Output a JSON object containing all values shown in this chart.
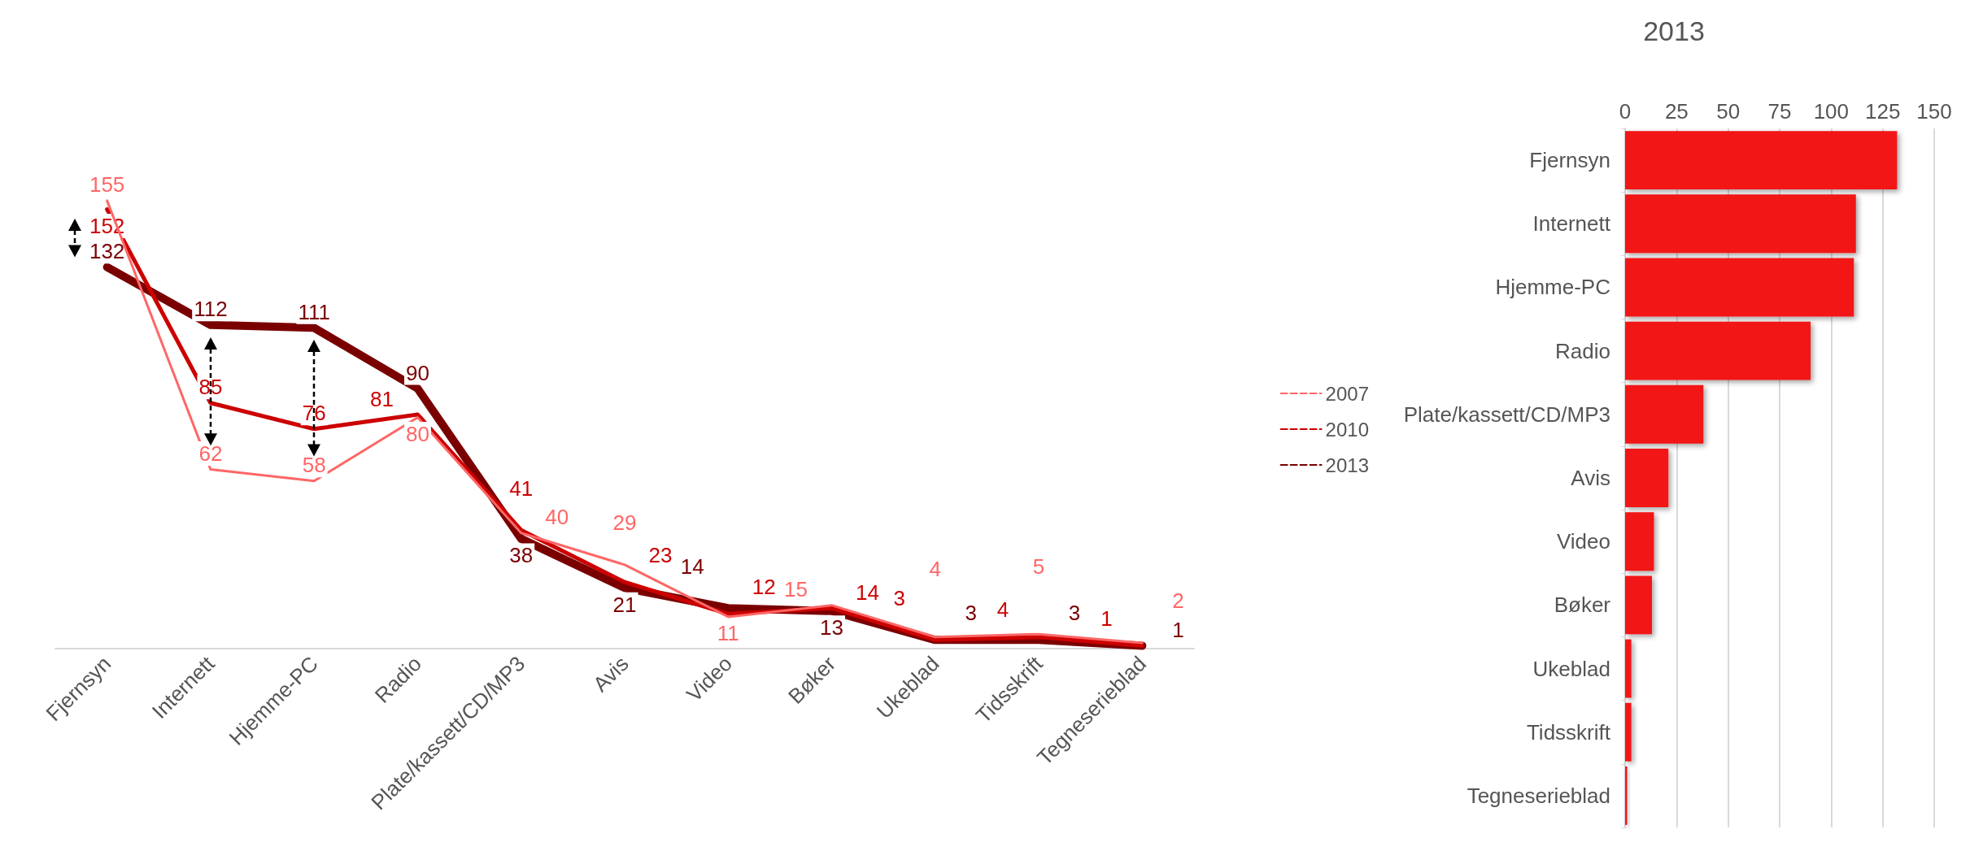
{
  "chart_data": [
    {
      "type": "line",
      "categories": [
        "Fjernsyn",
        "Internett",
        "Hjemme-PC",
        "Radio",
        "Plate/kassett/CD/MP3",
        "Avis",
        "Video",
        "Bøker",
        "Ukeblad",
        "Tidsskrift",
        "Tegneserieblad"
      ],
      "series": [
        {
          "name": "2007",
          "color": "#ff6666",
          "values": [
            155,
            62,
            58,
            80,
            40,
            29,
            11,
            15,
            4,
            5,
            2
          ]
        },
        {
          "name": "2010",
          "color": "#cc0000",
          "values": [
            152,
            85,
            76,
            81,
            41,
            23,
            12,
            14,
            3,
            4,
            1
          ]
        },
        {
          "name": "2013",
          "color": "#7a0000",
          "values": [
            132,
            112,
            111,
            90,
            38,
            21,
            14,
            13,
            3,
            3,
            1
          ]
        }
      ],
      "data_labels": true,
      "legend": "right",
      "marker": "none",
      "line_style": "solid",
      "grid": false
    },
    {
      "type": "bar",
      "title": "2013",
      "orientation": "horizontal",
      "categories": [
        "Fjernsyn",
        "Internett",
        "Hjemme-PC",
        "Radio",
        "Plate/kassett/CD/MP3",
        "Avis",
        "Video",
        "Bøker",
        "Ukeblad",
        "Tidsskrift",
        "Tegneserieblad"
      ],
      "values": [
        132,
        112,
        111,
        90,
        38,
        21,
        14,
        13,
        3,
        3,
        1
      ],
      "color": "#f21212",
      "xlim": [
        0,
        150
      ],
      "xticks": [
        0,
        25,
        50,
        75,
        100,
        125,
        150
      ],
      "grid": "x"
    }
  ]
}
